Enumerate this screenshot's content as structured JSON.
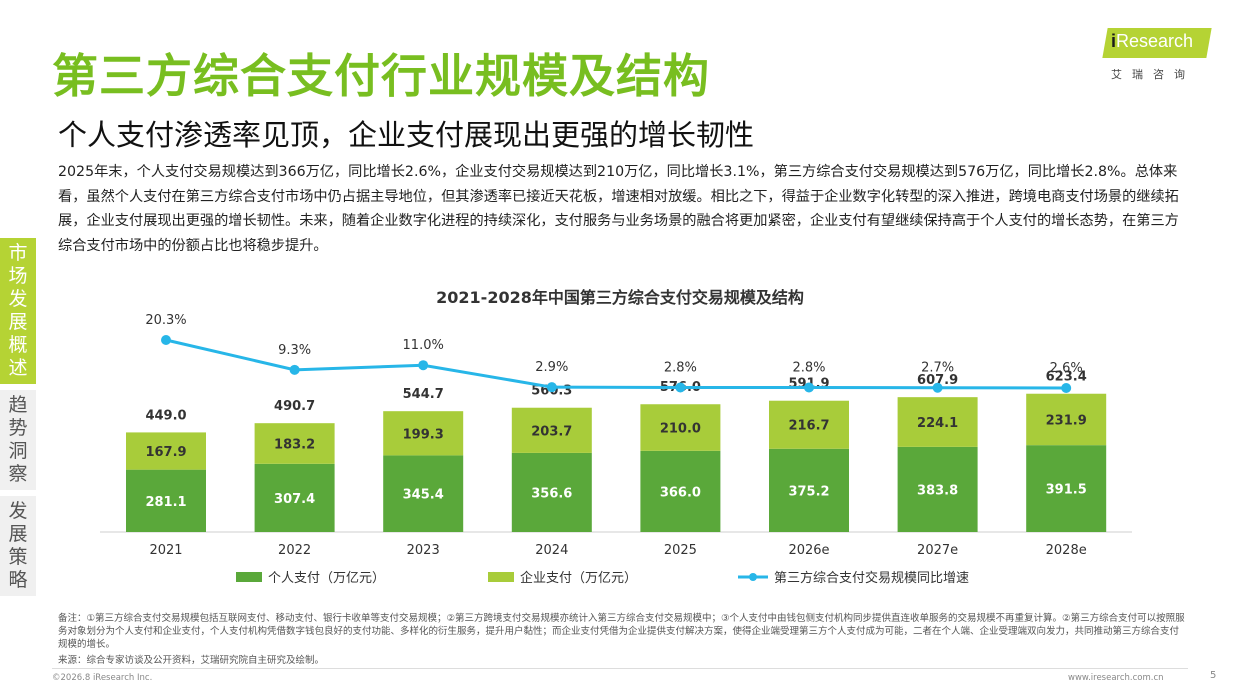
{
  "header": {
    "title": "第三方综合支付行业规模及结构",
    "subtitle": "个人支付渗透率见顶，企业支付展现出更强的增长韧性"
  },
  "logo": {
    "main_prefix": "i",
    "main_rest": "Research",
    "sub": "艾瑞咨询"
  },
  "body_text": "2025年末，个人支付交易规模达到366万亿，同比增长2.6%，企业支付交易规模达到210万亿，同比增长3.1%，第三方综合支付交易规模达到576万亿，同比增长2.8%。总体来看，虽然个人支付在第三方综合支付市场中仍占据主导地位，但其渗透率已接近天花板，增速相对放缓。相比之下，得益于企业数字化转型的深入推进，跨境电商支付场景的继续拓展，企业支付展现出更强的增长韧性。未来，随着企业数字化进程的持续深化，支付服务与业务场景的融合将更加紧密，企业支付有望继续保持高于个人支付的增长态势，在第三方综合支付市场中的份额占比也将稳步提升。",
  "sidenav": [
    {
      "label": "市场发展概述",
      "active": true
    },
    {
      "label": "趋势洞察",
      "active": false
    },
    {
      "label": "发展策略",
      "active": false
    }
  ],
  "chart_data": {
    "type": "bar",
    "stacked": true,
    "title": "2021-2028年中国第三方综合支付交易规模及结构",
    "categories": [
      "2021",
      "2022",
      "2023",
      "2024",
      "2025",
      "2026e",
      "2027e",
      "2028e"
    ],
    "series": [
      {
        "name": "个人支付（万亿元）",
        "type": "bar",
        "color": "#5aa83a",
        "values": [
          281.1,
          307.4,
          345.4,
          356.6,
          366.0,
          375.2,
          383.8,
          391.5
        ]
      },
      {
        "name": "企业支付（万亿元）",
        "type": "bar",
        "color": "#a8cc3a",
        "values": [
          167.9,
          183.2,
          199.3,
          203.7,
          210.0,
          216.7,
          224.1,
          231.9
        ]
      },
      {
        "name": "第三方综合支付交易规模同比增速",
        "type": "line",
        "color": "#27b6e8",
        "values": [
          20.3,
          9.3,
          11.0,
          2.9,
          2.8,
          2.8,
          2.7,
          2.6
        ],
        "unit": "%"
      }
    ],
    "totals": [
      449.0,
      490.7,
      544.7,
      560.3,
      576.0,
      591.9,
      607.9,
      623.4
    ],
    "legend_position": "bottom",
    "grid": false
  },
  "footnote": "备注：①第三方综合支付交易规模包括互联网支付、移动支付、银行卡收单等支付交易规模；②第三方跨境支付交易规模亦统计入第三方综合支付交易规模中；③个人支付中由钱包侧支付机构同步提供直连收单服务的交易规模不再重复计算。②第三方综合支付可以按照服务对象划分为个人支付和企业支付，个人支付机构凭借数字钱包良好的支付功能、多样化的衍生服务，提升用户黏性；而企业支付凭借为企业提供支付解决方案，使得企业端受理第三方个人支付成为可能，二者在个人端、企业受理端双向发力，共同推动第三方综合支付规模的增长。",
  "source": "来源：综合专家访谈及公开资料，艾瑞研究院自主研究及绘制。",
  "footer": {
    "copyright": "©2026.8 iResearch Inc.",
    "website": "www.iresearch.com.cn",
    "page": "5"
  }
}
